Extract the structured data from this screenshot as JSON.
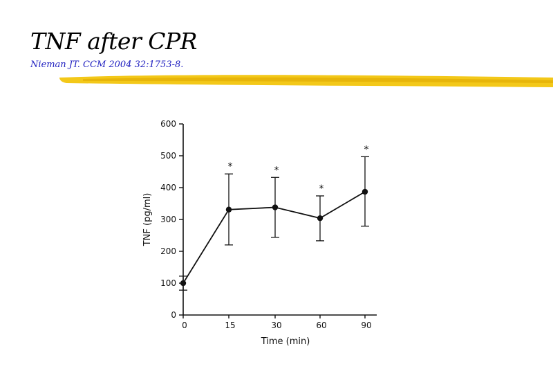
{
  "slide": {
    "title": "TNF after CPR",
    "citation": "Nieman JT. CCM 2004 32:1753-8.",
    "accent_color": "#f2c200"
  },
  "chart_data": {
    "type": "line",
    "categories": [
      "0",
      "15",
      "30",
      "60",
      "90"
    ],
    "series": [
      {
        "values": [
          100,
          331,
          338,
          304,
          387
        ],
        "error_high": [
          122,
          443,
          432,
          374,
          497
        ],
        "error_low": [
          78,
          220,
          244,
          233,
          279
        ],
        "significance": [
          "",
          "*",
          "*",
          "*",
          "*"
        ]
      }
    ],
    "xlabel": "Time (min)",
    "ylabel": "TNF (pg/ml)",
    "ylim": [
      0,
      600
    ],
    "yticks": [
      0,
      100,
      200,
      300,
      400,
      500,
      600
    ],
    "grid": false
  }
}
